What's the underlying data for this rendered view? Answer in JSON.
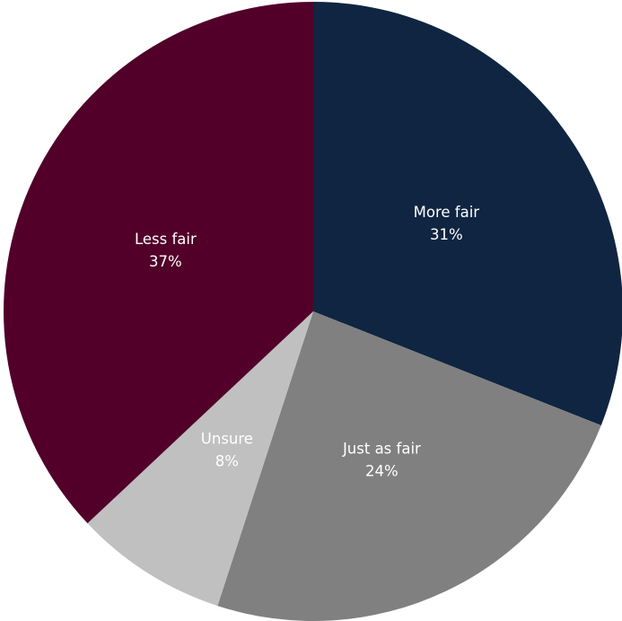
{
  "chart_data": {
    "type": "pie",
    "slices": [
      {
        "label": "More fair",
        "pct_label": "31%",
        "value": 31,
        "color": "#0f2541"
      },
      {
        "label": "Just as fair",
        "pct_label": "24%",
        "value": 24,
        "color": "#808080"
      },
      {
        "label": "Unsure",
        "pct_label": "8%",
        "value": 8,
        "color": "#c0c0c0"
      },
      {
        "label": "Less fair",
        "pct_label": "37%",
        "value": 37,
        "color": "#52002a"
      }
    ],
    "start": "12 o'clock",
    "direction": "clockwise",
    "legend": "none",
    "data_labels": "inside"
  }
}
